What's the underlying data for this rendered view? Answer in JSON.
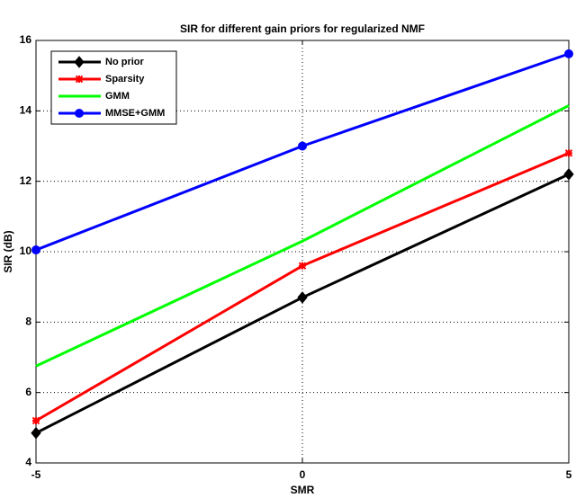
{
  "chart_data": {
    "type": "line",
    "title": "SIR for different gain priors for regularized NMF",
    "x_label": "SMR",
    "y_label": "SIR (dB)",
    "x": [
      -5,
      0,
      5
    ],
    "series": [
      {
        "name": "No prior",
        "color": "#000000",
        "marker": "diamond",
        "values": [
          4.85,
          8.7,
          12.2
        ]
      },
      {
        "name": "Sparsity",
        "color": "#ff0000",
        "marker": "star",
        "values": [
          5.2,
          9.6,
          12.8
        ]
      },
      {
        "name": "GMM",
        "color": "#00ff00",
        "marker": "none",
        "values": [
          6.75,
          10.3,
          14.15
        ]
      },
      {
        "name": "MMSE+GMM",
        "color": "#0000ff",
        "marker": "circle",
        "values": [
          10.05,
          13.0,
          15.62
        ]
      }
    ],
    "xlim": [
      -5,
      5
    ],
    "xticks": [
      -5,
      0,
      5
    ],
    "ylim": [
      4,
      16
    ],
    "yticks": [
      4,
      6,
      8,
      10,
      12,
      14,
      16
    ],
    "grid": true,
    "legend": "upper left"
  }
}
